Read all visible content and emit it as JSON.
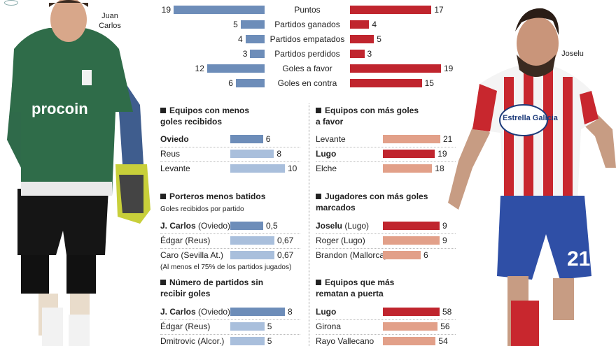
{
  "players": {
    "left_name": "Juan\nCarlos",
    "right_name": "Joselu",
    "left_shirt_sponsor": "procoin",
    "right_shirt_sponsor": "Estrella Galicia",
    "right_number": "21"
  },
  "chart_data": [
    {
      "type": "bar",
      "title": "",
      "categories": [
        "Puntos",
        "Partidos ganados",
        "Partidos empatados",
        "Partidos perdidos",
        "Goles a favor",
        "Goles en contra"
      ],
      "series": [
        {
          "name": "",
          "values": [
            19,
            5,
            4,
            3,
            12,
            6
          ],
          "color": "#6d8db9"
        },
        {
          "name": "",
          "values": [
            17,
            4,
            5,
            3,
            19,
            15
          ],
          "color": "#c0252e"
        }
      ]
    },
    {
      "type": "bar",
      "title": "Equipos con menos goles recibidos",
      "rows": [
        {
          "name": "Oviedo",
          "note": "",
          "value": 6,
          "label": "6",
          "highlight": true
        },
        {
          "name": "Reus",
          "note": "",
          "value": 8,
          "label": "8",
          "highlight": false
        },
        {
          "name": "Levante",
          "note": "",
          "value": 10,
          "label": "10",
          "highlight": false
        }
      ]
    },
    {
      "type": "bar",
      "title": "Equipos con más goles a favor",
      "rows": [
        {
          "name": "Levante",
          "note": "",
          "value": 21,
          "label": "21",
          "highlight": false
        },
        {
          "name": "Lugo",
          "note": "",
          "value": 19,
          "label": "19",
          "highlight": true
        },
        {
          "name": "Elche",
          "note": "",
          "value": 18,
          "label": "18",
          "highlight": false
        }
      ]
    },
    {
      "type": "bar",
      "title": "Porteros menos batidos",
      "subtitle": "Goles recibidos por partido",
      "footnote": "(Al menos el 75% de los partidos jugados)",
      "rows": [
        {
          "name": "J. Carlos",
          "note": "(Oviedo)",
          "value": 0.5,
          "label": "0,5",
          "highlight": true
        },
        {
          "name": "Édgar",
          "note": "(Reus)",
          "value": 0.67,
          "label": "0,67",
          "highlight": false
        },
        {
          "name": "Caro",
          "note": "(Sevilla At.)",
          "value": 0.67,
          "label": "0,67",
          "highlight": false
        }
      ]
    },
    {
      "type": "bar",
      "title": "Jugadores con más goles marcados",
      "rows": [
        {
          "name": "Joselu",
          "note": "(Lugo)",
          "value": 9,
          "label": "9",
          "highlight": true
        },
        {
          "name": "Roger",
          "note": "(Lugo)",
          "value": 9,
          "label": "9",
          "highlight": false
        },
        {
          "name": "Brandon",
          "note": "(Mallorca)",
          "value": 6,
          "label": "6",
          "highlight": false
        }
      ]
    },
    {
      "type": "bar",
      "title": "Número de partidos sin recibir goles",
      "rows": [
        {
          "name": "J. Carlos",
          "note": "(Oviedo)",
          "value": 8,
          "label": "8",
          "highlight": true
        },
        {
          "name": "Édgar",
          "note": "(Reus)",
          "value": 5,
          "label": "5",
          "highlight": false
        },
        {
          "name": "Dmitrovic",
          "note": "(Alcor.)",
          "value": 5,
          "label": "5",
          "highlight": false
        }
      ]
    },
    {
      "type": "bar",
      "title": "Equipos que más rematan a puerta",
      "rows": [
        {
          "name": "Lugo",
          "note": "",
          "value": 58,
          "label": "58",
          "highlight": true
        },
        {
          "name": "Girona",
          "note": "",
          "value": 56,
          "label": "56",
          "highlight": false
        },
        {
          "name": "Rayo Vallecano",
          "note": "",
          "value": 54,
          "label": "54",
          "highlight": false
        }
      ]
    }
  ]
}
